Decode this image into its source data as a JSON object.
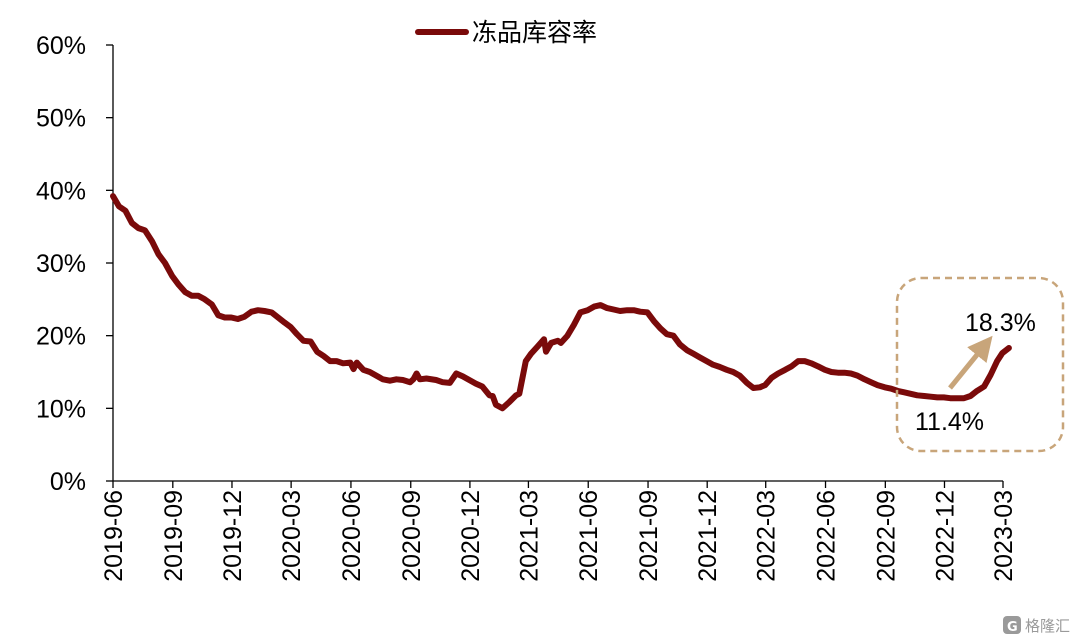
{
  "chart_data": {
    "type": "line",
    "title": "",
    "xlabel": "",
    "ylabel": "",
    "ylim": [
      0,
      60
    ],
    "y_ticks": [
      "0%",
      "10%",
      "20%",
      "30%",
      "40%",
      "50%",
      "60%"
    ],
    "x_ticks": [
      "2019-06",
      "2019-09",
      "2019-12",
      "2020-03",
      "2020-06",
      "2020-09",
      "2020-12",
      "2021-03",
      "2021-06",
      "2021-09",
      "2021-12",
      "2022-03",
      "2022-06",
      "2022-09",
      "2022-12",
      "2023-03"
    ],
    "legend_position": "top-center",
    "grid": false,
    "series": [
      {
        "name": "冻品库容率",
        "color": "#7a0a0a",
        "points": [
          [
            "2019-06-01",
            39.2
          ],
          [
            "2019-06-10",
            37.8
          ],
          [
            "2019-06-20",
            37.2
          ],
          [
            "2019-06-30",
            35.5
          ],
          [
            "2019-07-10",
            34.8
          ],
          [
            "2019-07-20",
            34.5
          ],
          [
            "2019-07-31",
            33.0
          ],
          [
            "2019-08-10",
            31.2
          ],
          [
            "2019-08-20",
            30.0
          ],
          [
            "2019-08-31",
            28.2
          ],
          [
            "2019-09-10",
            27.0
          ],
          [
            "2019-09-20",
            26.0
          ],
          [
            "2019-09-30",
            25.5
          ],
          [
            "2019-10-10",
            25.5
          ],
          [
            "2019-10-20",
            25.0
          ],
          [
            "2019-10-31",
            24.3
          ],
          [
            "2019-11-10",
            22.8
          ],
          [
            "2019-11-20",
            22.5
          ],
          [
            "2019-11-30",
            22.5
          ],
          [
            "2019-12-10",
            22.3
          ],
          [
            "2019-12-20",
            22.6
          ],
          [
            "2019-12-31",
            23.3
          ],
          [
            "2020-01-10",
            23.5
          ],
          [
            "2020-01-20",
            23.4
          ],
          [
            "2020-01-31",
            23.2
          ],
          [
            "2020-02-10",
            22.5
          ],
          [
            "2020-02-20",
            21.8
          ],
          [
            "2020-02-29",
            21.2
          ],
          [
            "2020-03-10",
            20.2
          ],
          [
            "2020-03-20",
            19.3
          ],
          [
            "2020-03-31",
            19.2
          ],
          [
            "2020-04-10",
            17.8
          ],
          [
            "2020-04-20",
            17.2
          ],
          [
            "2020-04-30",
            16.5
          ],
          [
            "2020-05-10",
            16.5
          ],
          [
            "2020-05-20",
            16.2
          ],
          [
            "2020-05-31",
            16.3
          ],
          [
            "2020-06-05",
            15.4
          ],
          [
            "2020-06-10",
            16.3
          ],
          [
            "2020-06-20",
            15.3
          ],
          [
            "2020-06-30",
            15.0
          ],
          [
            "2020-07-10",
            14.5
          ],
          [
            "2020-07-20",
            14.0
          ],
          [
            "2020-07-31",
            13.8
          ],
          [
            "2020-08-10",
            14.0
          ],
          [
            "2020-08-20",
            13.9
          ],
          [
            "2020-08-31",
            13.6
          ],
          [
            "2020-09-05",
            14.0
          ],
          [
            "2020-09-10",
            14.8
          ],
          [
            "2020-09-15",
            14.0
          ],
          [
            "2020-09-25",
            14.1
          ],
          [
            "2020-10-10",
            13.9
          ],
          [
            "2020-10-20",
            13.6
          ],
          [
            "2020-10-31",
            13.5
          ],
          [
            "2020-11-10",
            14.8
          ],
          [
            "2020-11-20",
            14.4
          ],
          [
            "2020-11-30",
            13.9
          ],
          [
            "2020-12-10",
            13.4
          ],
          [
            "2020-12-20",
            13.0
          ],
          [
            "2020-12-31",
            11.8
          ],
          [
            "2021-01-05",
            11.7
          ],
          [
            "2021-01-10",
            10.5
          ],
          [
            "2021-01-20",
            10.0
          ],
          [
            "2021-01-31",
            10.9
          ],
          [
            "2021-02-10",
            11.8
          ],
          [
            "2021-02-15",
            12.0
          ],
          [
            "2021-02-25",
            16.5
          ],
          [
            "2021-03-05",
            17.5
          ],
          [
            "2021-03-15",
            18.5
          ],
          [
            "2021-03-25",
            19.5
          ],
          [
            "2021-03-28",
            17.8
          ],
          [
            "2021-04-05",
            19.0
          ],
          [
            "2021-04-15",
            19.3
          ],
          [
            "2021-04-20",
            19.0
          ],
          [
            "2021-04-30",
            20.0
          ],
          [
            "2021-05-10",
            21.5
          ],
          [
            "2021-05-20",
            23.2
          ],
          [
            "2021-05-31",
            23.5
          ],
          [
            "2021-06-10",
            24.0
          ],
          [
            "2021-06-20",
            24.2
          ],
          [
            "2021-06-30",
            23.8
          ],
          [
            "2021-07-10",
            23.6
          ],
          [
            "2021-07-20",
            23.4
          ],
          [
            "2021-07-31",
            23.5
          ],
          [
            "2021-08-10",
            23.5
          ],
          [
            "2021-08-20",
            23.3
          ],
          [
            "2021-08-31",
            23.2
          ],
          [
            "2021-09-10",
            22.0
          ],
          [
            "2021-09-20",
            21.0
          ],
          [
            "2021-09-30",
            20.2
          ],
          [
            "2021-10-10",
            20.0
          ],
          [
            "2021-10-20",
            18.8
          ],
          [
            "2021-10-31",
            18.0
          ],
          [
            "2021-11-10",
            17.5
          ],
          [
            "2021-11-20",
            17.0
          ],
          [
            "2021-11-30",
            16.5
          ],
          [
            "2021-12-10",
            16.0
          ],
          [
            "2021-12-20",
            15.7
          ],
          [
            "2021-12-31",
            15.3
          ],
          [
            "2022-01-10",
            15.0
          ],
          [
            "2022-01-20",
            14.5
          ],
          [
            "2022-01-31",
            13.5
          ],
          [
            "2022-02-10",
            12.8
          ],
          [
            "2022-02-20",
            12.9
          ],
          [
            "2022-02-28",
            13.2
          ],
          [
            "2022-03-10",
            14.2
          ],
          [
            "2022-03-20",
            14.8
          ],
          [
            "2022-03-31",
            15.3
          ],
          [
            "2022-04-10",
            15.8
          ],
          [
            "2022-04-20",
            16.5
          ],
          [
            "2022-04-30",
            16.5
          ],
          [
            "2022-05-10",
            16.2
          ],
          [
            "2022-05-20",
            15.8
          ],
          [
            "2022-05-31",
            15.3
          ],
          [
            "2022-06-10",
            15.0
          ],
          [
            "2022-06-20",
            14.9
          ],
          [
            "2022-06-30",
            14.9
          ],
          [
            "2022-07-10",
            14.8
          ],
          [
            "2022-07-20",
            14.5
          ],
          [
            "2022-07-31",
            14.0
          ],
          [
            "2022-08-10",
            13.6
          ],
          [
            "2022-08-20",
            13.2
          ],
          [
            "2022-08-31",
            12.9
          ],
          [
            "2022-09-10",
            12.7
          ],
          [
            "2022-09-20",
            12.4
          ],
          [
            "2022-09-30",
            12.2
          ],
          [
            "2022-10-10",
            12.0
          ],
          [
            "2022-10-20",
            11.8
          ],
          [
            "2022-10-31",
            11.7
          ],
          [
            "2022-11-10",
            11.6
          ],
          [
            "2022-11-20",
            11.5
          ],
          [
            "2022-11-30",
            11.5
          ],
          [
            "2022-12-10",
            11.4
          ],
          [
            "2022-12-20",
            11.4
          ],
          [
            "2022-12-31",
            11.4
          ],
          [
            "2023-01-10",
            11.7
          ],
          [
            "2023-01-20",
            12.4
          ],
          [
            "2023-01-31",
            13.0
          ],
          [
            "2023-02-10",
            14.6
          ],
          [
            "2023-02-20",
            16.5
          ],
          [
            "2023-02-28",
            17.6
          ],
          [
            "2023-03-10",
            18.3
          ]
        ]
      }
    ],
    "annotations": {
      "end_label": "18.3%",
      "low_label": "11.4%",
      "arrow_color": "#c8a57a",
      "box_color": "#c8a57a"
    }
  },
  "watermark": {
    "badge": "G",
    "text": "格隆汇"
  }
}
